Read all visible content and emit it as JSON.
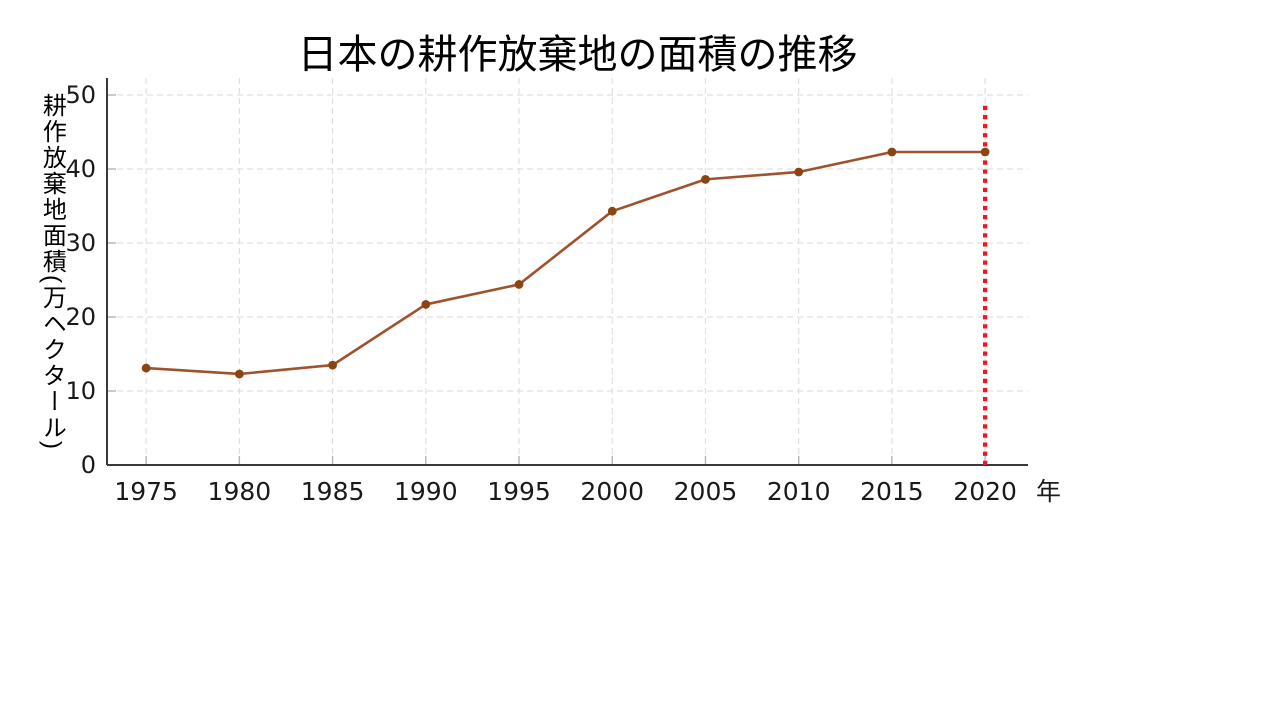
{
  "chart_data": {
    "type": "line",
    "title": "日本の耕作放棄地の面積の推移",
    "xlabel": "年",
    "ylabel": "耕作放棄地面積(万ヘクタール)",
    "x": [
      1975,
      1980,
      1985,
      1990,
      1995,
      2000,
      2005,
      2010,
      2015,
      2020
    ],
    "series": [
      {
        "name": "耕作放棄地面積",
        "values": [
          13.1,
          12.3,
          13.5,
          21.7,
          24.4,
          34.3,
          38.6,
          39.6,
          42.3,
          42.3
        ],
        "line_color": "#A0522D",
        "marker_color": "#8B4513",
        "marker": "circle"
      }
    ],
    "xticks": {
      "values": [
        1975,
        1980,
        1985,
        1990,
        1995,
        2000,
        2005,
        2010,
        2015,
        2020
      ],
      "labels": [
        "1975",
        "1980",
        "1985",
        "1990",
        "1995",
        "2000",
        "2005",
        "2010",
        "2015",
        "2020"
      ]
    },
    "yticks": {
      "values": [
        0,
        10,
        20,
        30,
        40,
        50
      ],
      "labels": [
        "0",
        "10",
        "20",
        "30",
        "40",
        "50"
      ]
    },
    "xlim": [
      1972.9,
      2022.3
    ],
    "ylim": [
      0,
      52.3
    ],
    "grid": true,
    "grid_style": "dashed",
    "legend": "none",
    "annotations": [
      {
        "type": "vline",
        "x": 2020,
        "y_from": 0,
        "y_to": 48.6,
        "color": "#EE1822",
        "style": "dotted"
      }
    ]
  }
}
